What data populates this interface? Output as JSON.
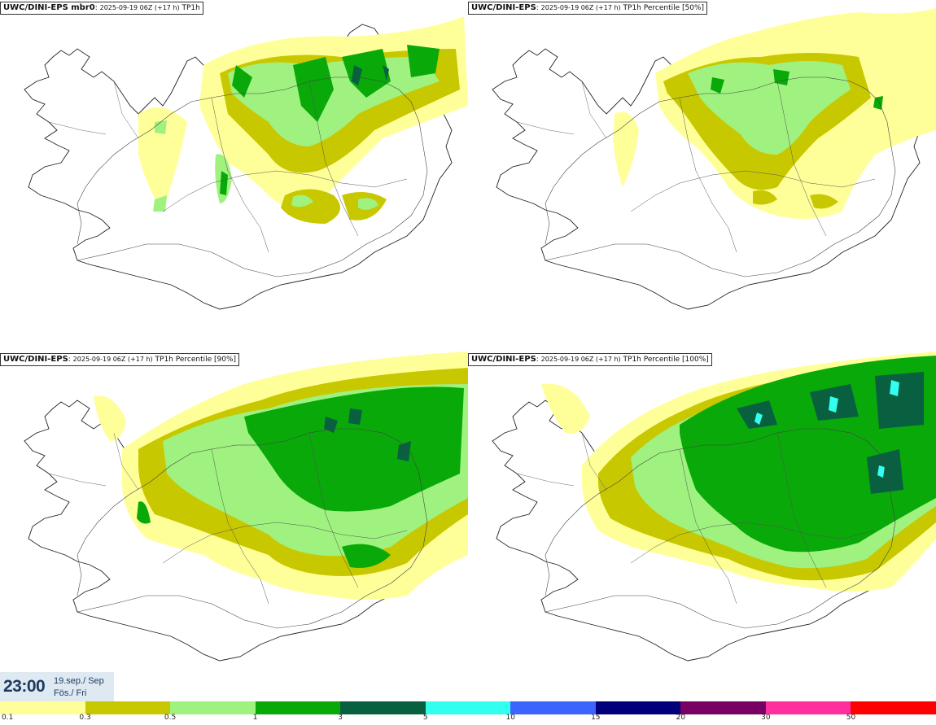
{
  "panels": [
    {
      "model": "UWC/DINI-EPS mbr0",
      "run": "2025-09-19 06Z (+17 h)",
      "field": "TP1h"
    },
    {
      "model": "UWC/DINI-EPS",
      "run": "2025-09-19 06Z (+17 h)",
      "field": "TP1h Percentile [50%]"
    },
    {
      "model": "UWC/DINI-EPS",
      "run": "2025-09-19 06Z (+17 h)",
      "field": "TP1h Percentile [90%]"
    },
    {
      "model": "UWC/DINI-EPS",
      "run": "2025-09-19 06Z (+17 h)",
      "field": "TP1h Percentile [100%]"
    }
  ],
  "valid_time": {
    "time": "23:00",
    "date": "19.sep./ Sep",
    "weekday": "Fös./ Fri"
  },
  "legend": {
    "colors": [
      "#ffff99",
      "#c8c800",
      "#9ff27f",
      "#08a908",
      "#086040",
      "#33ffee",
      "#3c64ff",
      "#00007a",
      "#780064",
      "#ff2f9e",
      "#ff0000"
    ],
    "labels": [
      "0.1",
      "0.3",
      "0.5",
      "1",
      "3",
      "5",
      "10",
      "15",
      "20",
      "30",
      "50"
    ]
  }
}
